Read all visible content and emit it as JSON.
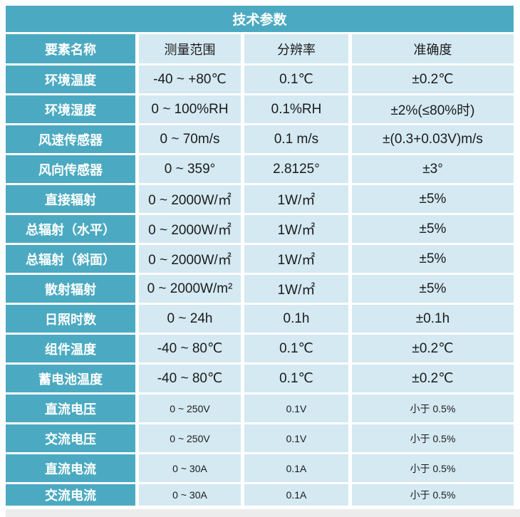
{
  "title": "技术参数",
  "header": {
    "name": "要素名称",
    "range": "测量范围",
    "resolution": "分辨率",
    "accuracy": "准确度"
  },
  "rows": [
    {
      "name": "环境温度",
      "range": "-40 ~ +80℃",
      "resolution": "0.1℃",
      "accuracy": "±0.2℃"
    },
    {
      "name": "环境湿度",
      "range": "0 ~ 100%RH",
      "resolution": "0.1%RH",
      "accuracy": "±2%(≤80%时)"
    },
    {
      "name": "风速传感器",
      "range": "0 ~ 70m/s",
      "resolution": "0.1 m/s",
      "accuracy": "±(0.3+0.03V)m/s"
    },
    {
      "name": "风向传感器",
      "range": "0 ~ 359°",
      "resolution": "2.8125°",
      "accuracy": "±3°"
    },
    {
      "name": "直接辐射",
      "range": "0 ~ 2000W/㎡",
      "resolution": "1W/㎡",
      "accuracy": "±5%"
    },
    {
      "name": "总辐射（水平）",
      "range": "0 ~ 2000W/㎡",
      "resolution": "1W/㎡",
      "accuracy": "±5%"
    },
    {
      "name": "总辐射（斜面）",
      "range": "0 ~ 2000W/㎡",
      "resolution": "1W/㎡",
      "accuracy": "±5%"
    },
    {
      "name": "散射辐射",
      "range": "0 ~ 2000W/m²",
      "resolution": "1W/㎡",
      "accuracy": "±5%"
    },
    {
      "name": "日照时数",
      "range": "0 ~ 24h",
      "resolution": "0.1h",
      "accuracy": "±0.1h"
    },
    {
      "name": "组件温度",
      "range": "-40 ~ 80℃",
      "resolution": "0.1℃",
      "accuracy": "±0.2℃"
    },
    {
      "name": "蓄电池温度",
      "range": "-40 ~ 80℃",
      "resolution": "0.1℃",
      "accuracy": "±0.2℃"
    },
    {
      "name": "直流电压",
      "range": "0 ~ 250V",
      "resolution": "0.1V",
      "accuracy": "小于 0.5%"
    },
    {
      "name": "交流电压",
      "range": "0 ~ 250V",
      "resolution": "0.1V",
      "accuracy": "小于 0.5%"
    },
    {
      "name": "直流电流",
      "range": "0 ~ 30A",
      "resolution": "0.1A",
      "accuracy": "小于 0.5%"
    },
    {
      "name": "交流电流",
      "range": "0 ~ 30A",
      "resolution": "0.1A",
      "accuracy": "小于 0.5%"
    }
  ],
  "colors": {
    "teal": "#4BAAC1",
    "light_blue": "#D4E9F2",
    "footer_gray": "#ECECEC",
    "text_dark": "#1B1B1B",
    "text_light": "#FFFFFF"
  }
}
